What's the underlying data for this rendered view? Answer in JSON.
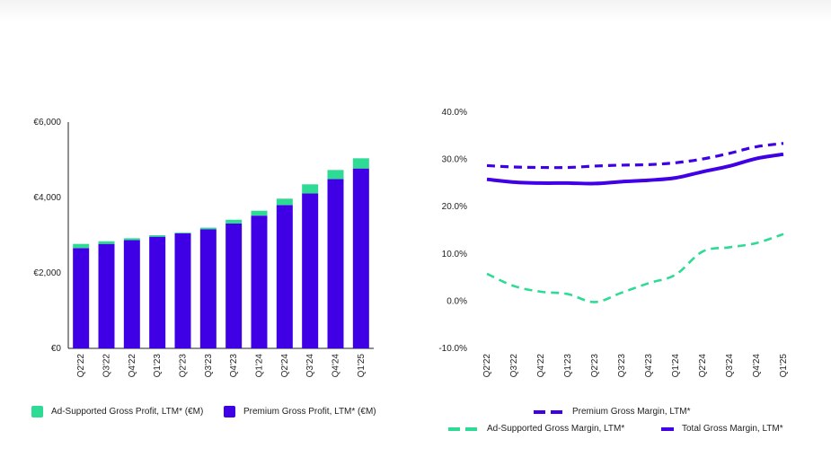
{
  "colors": {
    "premium": "#4000E6",
    "ad_supported": "#2EDB94",
    "axis": "#222222"
  },
  "chart_data": [
    {
      "type": "bar",
      "stacked": true,
      "categories": [
        "Q2'22",
        "Q3'22",
        "Q4'22",
        "Q1'23",
        "Q2'23",
        "Q3'23",
        "Q4'23",
        "Q1'24",
        "Q2'24",
        "Q3'24",
        "Q4'24",
        "Q1'25"
      ],
      "series": [
        {
          "name": "Premium Gross Profit, LTM* (€M)",
          "values": [
            2660,
            2770,
            2870,
            2960,
            3050,
            3160,
            3310,
            3520,
            3800,
            4110,
            4490,
            4770
          ]
        },
        {
          "name": "Ad-Supported Gross Profit, LTM* (€M)",
          "values": [
            110,
            70,
            50,
            40,
            20,
            40,
            100,
            130,
            170,
            240,
            240,
            270
          ]
        }
      ],
      "y_ticks": [
        "€0",
        "€2,000",
        "€4,000",
        "€6,000"
      ],
      "y_tick_values": [
        0,
        2000,
        4000,
        6000
      ],
      "ylim": [
        0,
        6000
      ],
      "legend": [
        {
          "label": "Ad-Supported Gross Profit, LTM* (€M)",
          "series": "ad_supported"
        },
        {
          "label": "Premium Gross Profit, LTM*  (€M)",
          "series": "premium"
        }
      ]
    },
    {
      "type": "line",
      "categories": [
        "Q2'22",
        "Q3'22",
        "Q4'22",
        "Q1'23",
        "Q2'23",
        "Q3'23",
        "Q4'23",
        "Q1'24",
        "Q2'24",
        "Q3'24",
        "Q4'24",
        "Q1'25"
      ],
      "series": [
        {
          "name": "Premium Gross Margin, LTM*",
          "style": "dashed",
          "values": [
            28.7,
            28.4,
            28.3,
            28.3,
            28.6,
            28.8,
            28.9,
            29.3,
            30.1,
            31.3,
            32.7,
            33.4
          ]
        },
        {
          "name": "Ad-Supported Gross Margin, LTM*",
          "style": "dashed",
          "values": [
            5.8,
            3.2,
            2.0,
            1.5,
            -0.2,
            1.8,
            3.8,
            5.6,
            10.5,
            11.4,
            12.3,
            14.2
          ]
        },
        {
          "name": "Total Gross Margin, LTM*",
          "style": "solid",
          "values": [
            25.8,
            25.2,
            25.0,
            25.0,
            24.9,
            25.3,
            25.6,
            26.1,
            27.4,
            28.6,
            30.2,
            31.1
          ]
        }
      ],
      "y_ticks": [
        "-10.0%",
        "0.0%",
        "10.0%",
        "20.0%",
        "30.0%",
        "40.0%"
      ],
      "y_tick_values": [
        -10,
        0,
        10,
        20,
        30,
        40
      ],
      "ylim": [
        -10,
        40
      ],
      "legend": [
        {
          "label": "Premium Gross Margin, LTM*",
          "series": "premium",
          "style": "dashed"
        },
        {
          "label": "Ad-Supported Gross Margin, LTM*",
          "series": "ad_supported",
          "style": "dashed"
        },
        {
          "label": "Total Gross Margin, LTM*",
          "series": "premium",
          "style": "solid"
        }
      ]
    }
  ]
}
